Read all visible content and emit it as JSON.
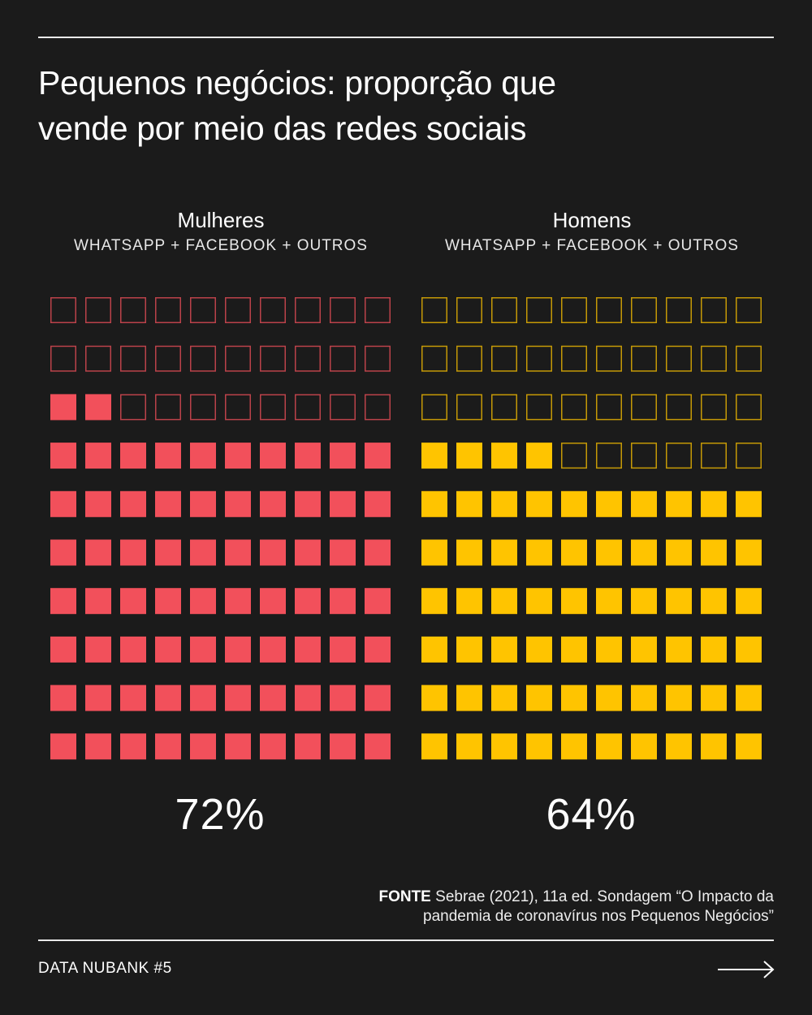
{
  "title_line1": "Pequenos negócios: proporção que",
  "title_line2": "vende por meio das redes sociais",
  "source": {
    "label": "FONTE",
    "line1": "Sebrae (2021), 11a ed. Sondagem “O Impacto da",
    "line2": "pandemia de coronavírus nos Pequenos Negócios”"
  },
  "footer": {
    "label": "DATA NUBANK #5",
    "arrow_icon": "arrow-right-icon"
  },
  "chart_data": {
    "type": "waffle",
    "total_cells": 100,
    "grid": {
      "rows": 10,
      "cols": 10
    },
    "fill_order": "bottom-to-top, left-to-right",
    "panels": [
      {
        "name": "Mulheres",
        "subtitle": "WHATSAPP + FACEBOOK + OUTROS",
        "value": 72,
        "value_label": "72%",
        "color": "#f2505b"
      },
      {
        "name": "Homens",
        "subtitle": "WHATSAPP + FACEBOOK + OUTROS",
        "value": 64,
        "value_label": "64%",
        "color": "#ffc400"
      }
    ]
  }
}
